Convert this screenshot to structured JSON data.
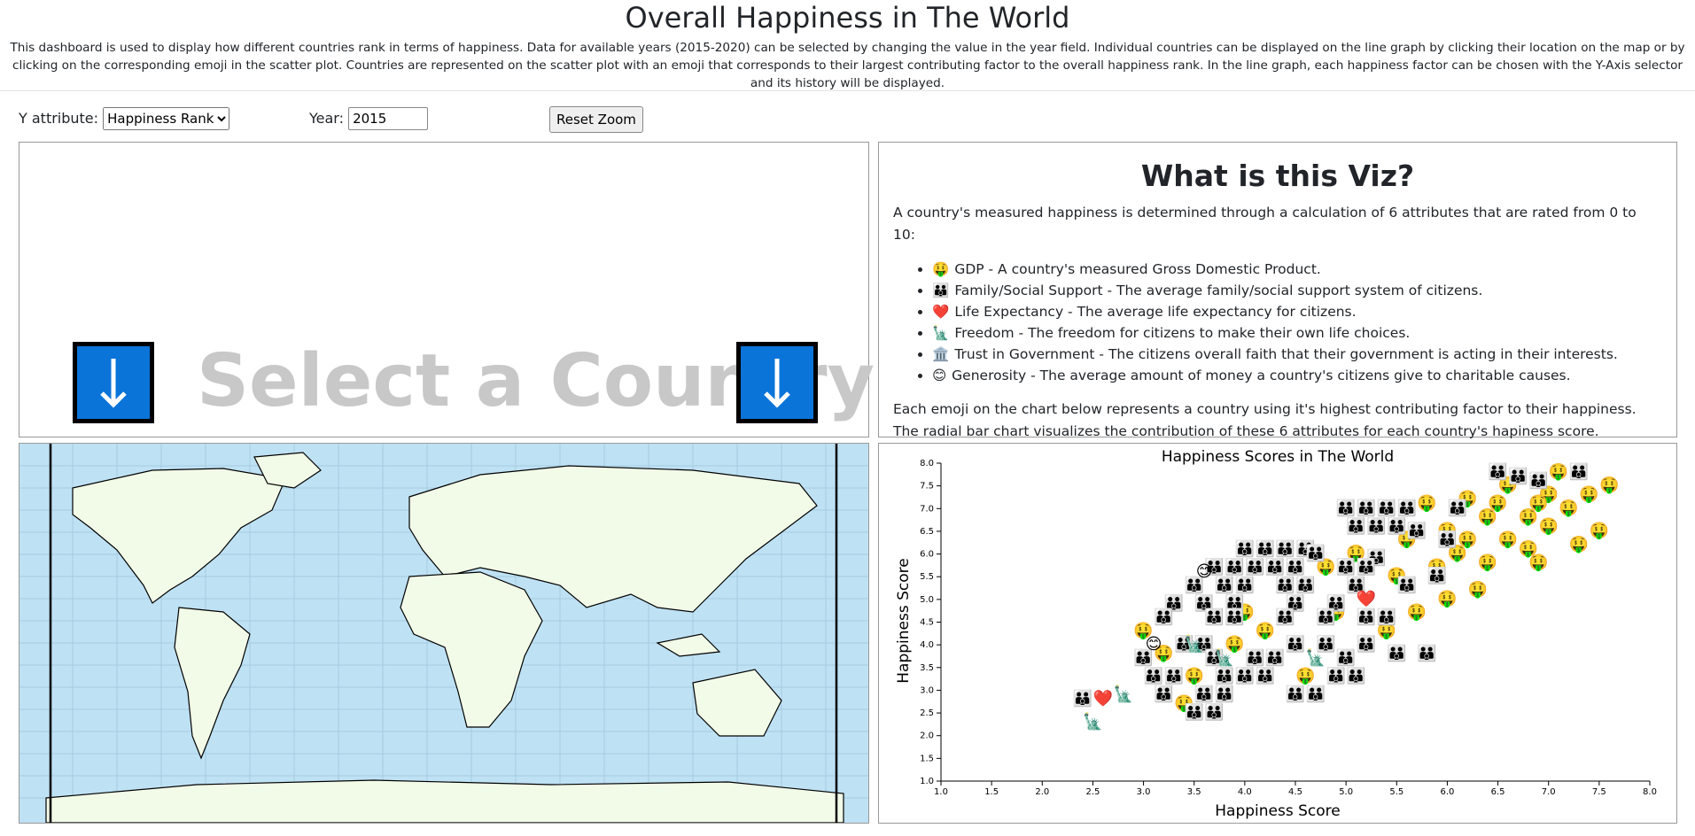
{
  "header": {
    "title": "Overall Happiness in The World",
    "description": "This dashboard is used to display how different countries rank in terms of happiness. Data for available years (2015-2020) can be selected by changing the value in the year field. Individual countries can be displayed on the line graph by clicking their location on the map or by clicking on the corresponding emoji in the scatter plot. Countries are represented on the scatter plot with an emoji that corresponds to their largest contributing factor to the overall happiness rank. In the line graph, each happiness factor can be chosen with the Y-Axis selector and its history will be displayed."
  },
  "controls": {
    "y_attribute_label": "Y attribute:",
    "y_attribute_value": "Happiness Rank",
    "year_label": "Year:",
    "year_value": "2015",
    "reset_button": "Reset Zoom"
  },
  "placeholder": {
    "text": "Select a Country",
    "arrow": "↓"
  },
  "info": {
    "title": "What is this Viz?",
    "intro": "A country's measured happiness is determined through a calculation of 6 attributes that are rated from 0 to 10:",
    "items": [
      {
        "emoji": "🤑",
        "text": "GDP - A country's measured Gross Domestic Product."
      },
      {
        "emoji": "👪",
        "text": "Family/Social Support - The average family/social support system of citizens."
      },
      {
        "emoji": "❤️",
        "text": "Life Expectancy - The average life expectancy for citizens."
      },
      {
        "emoji": "🗽",
        "text": "Freedom - The freedom for citizens to make their own life choices."
      },
      {
        "emoji": "🏛️",
        "text": "Trust in Government - The citizens overall faith that their government is acting in their interests."
      },
      {
        "emoji": "😊",
        "text": "Generosity - The average amount of money a country's citizens give to charitable causes."
      }
    ],
    "outro": [
      "Each emoji on the chart below represents a country using it's highest contributing factor to their happiness.",
      "The radial bar chart visualizes the contribution of these 6 attributes for each country's hapiness score."
    ]
  },
  "chart_data": {
    "type": "scatter",
    "title": "Happiness Scores in The World",
    "x_label": "Happiness Score",
    "y_label": "Happiness Score",
    "xlim": [
      1,
      8
    ],
    "ylim": [
      1,
      8
    ],
    "xticks": [
      {
        "value": 1,
        "label": "1.0"
      },
      {
        "value": 1.5,
        "label": "1.5"
      },
      {
        "value": 2,
        "label": "2.0"
      },
      {
        "value": 2.5,
        "label": "2.5"
      },
      {
        "value": 3,
        "label": "3.0"
      },
      {
        "value": 3.5,
        "label": "3.5"
      },
      {
        "value": 4,
        "label": "4.0"
      },
      {
        "value": 4.5,
        "label": "4.5"
      },
      {
        "value": 5,
        "label": "5.0"
      },
      {
        "value": 5.5,
        "label": "5.5"
      },
      {
        "value": 6,
        "label": "6.0"
      },
      {
        "value": 6.5,
        "label": "6.5"
      },
      {
        "value": 7,
        "label": "7.0"
      },
      {
        "value": 7.5,
        "label": "7.5"
      },
      {
        "value": 8,
        "label": "8.0"
      }
    ],
    "yticks": [
      {
        "value": 1,
        "label": "1.0"
      },
      {
        "value": 1.5,
        "label": "1.5"
      },
      {
        "value": 2,
        "label": "2.0"
      },
      {
        "value": 2.5,
        "label": "2.5"
      },
      {
        "value": 3,
        "label": "3.0"
      },
      {
        "value": 3.5,
        "label": "3.5"
      },
      {
        "value": 4,
        "label": "4.0"
      },
      {
        "value": 4.5,
        "label": "4.5"
      },
      {
        "value": 5,
        "label": "5.0"
      },
      {
        "value": 5.5,
        "label": "5.5"
      },
      {
        "value": 6,
        "label": "6.0"
      },
      {
        "value": 6.5,
        "label": "6.5"
      },
      {
        "value": 7,
        "label": "7.0"
      },
      {
        "value": 7.5,
        "label": "7.5"
      },
      {
        "value": 8,
        "label": "8.0"
      }
    ],
    "series": [
      {
        "marker": "🤑",
        "x": [
          7.1,
          7.6,
          7.4,
          7.0,
          6.6,
          6.9,
          6.5,
          6.2,
          7.2,
          6.8,
          6.4,
          7.0,
          7.5,
          6.6,
          6.2,
          7.3,
          6.8,
          5.8,
          6.0,
          6.1,
          6.4,
          6.9,
          5.9,
          6.3,
          6.0,
          5.7,
          5.4,
          4.9,
          4.2,
          3.5,
          4.6,
          3.9,
          3.2,
          3.0,
          4.8,
          5.5,
          5.1,
          3.4,
          4.0,
          5.6
        ],
        "y": [
          7.8,
          7.5,
          7.3,
          7.3,
          7.5,
          7.1,
          7.1,
          7.2,
          7.0,
          6.8,
          6.8,
          6.6,
          6.5,
          6.3,
          6.3,
          6.2,
          6.1,
          7.1,
          6.5,
          6.0,
          5.8,
          5.8,
          5.7,
          5.2,
          5.0,
          4.7,
          4.3,
          4.7,
          4.3,
          3.3,
          3.3,
          4.0,
          3.8,
          4.3,
          5.7,
          5.5,
          6.0,
          2.7,
          4.7,
          6.3
        ]
      },
      {
        "marker": "👪",
        "x": [
          7.3,
          6.9,
          6.7,
          6.5,
          6.1,
          5.0,
          5.2,
          5.4,
          5.6,
          5.1,
          5.3,
          5.5,
          5.7,
          6.0,
          4.0,
          4.2,
          4.4,
          4.6,
          4.7,
          5.3,
          3.7,
          3.9,
          4.1,
          4.3,
          4.5,
          5.0,
          5.2,
          3.5,
          3.8,
          4.0,
          4.4,
          4.6,
          5.1,
          5.6,
          5.9,
          3.3,
          3.6,
          3.9,
          4.5,
          4.9,
          3.2,
          3.7,
          3.9,
          4.4,
          4.8,
          5.2,
          5.4,
          3.4,
          3.6,
          4.5,
          4.8,
          5.2,
          3.0,
          3.7,
          4.1,
          4.3,
          5.0,
          5.5,
          5.8,
          3.1,
          3.3,
          3.8,
          4.0,
          4.2,
          4.9,
          5.1,
          3.2,
          3.6,
          3.8,
          4.5,
          4.7,
          3.5,
          3.7,
          2.4
        ],
        "y": [
          7.8,
          7.6,
          7.7,
          7.8,
          7.0,
          7.0,
          7.0,
          7.0,
          7.0,
          6.6,
          6.6,
          6.6,
          6.5,
          6.3,
          6.1,
          6.1,
          6.1,
          6.1,
          6.0,
          5.9,
          5.7,
          5.7,
          5.7,
          5.7,
          5.7,
          5.7,
          5.7,
          5.3,
          5.3,
          5.3,
          5.3,
          5.3,
          5.3,
          5.3,
          5.5,
          4.9,
          4.9,
          4.9,
          4.9,
          4.9,
          4.6,
          4.6,
          4.6,
          4.6,
          4.6,
          4.6,
          4.6,
          4.0,
          4.0,
          4.0,
          4.0,
          4.0,
          3.7,
          3.7,
          3.7,
          3.7,
          3.7,
          3.8,
          3.8,
          3.3,
          3.3,
          3.3,
          3.3,
          3.3,
          3.3,
          3.3,
          2.9,
          2.9,
          2.9,
          2.9,
          2.9,
          2.5,
          2.5,
          2.8
        ]
      },
      {
        "marker": "❤️",
        "x": [
          2.6,
          5.2
        ],
        "y": [
          2.8,
          5.0
        ]
      },
      {
        "marker": "🗽",
        "x": [
          2.5,
          2.8,
          3.8,
          4.7,
          3.5
        ],
        "y": [
          2.3,
          2.9,
          3.7,
          3.7,
          4.0
        ]
      },
      {
        "marker": "😊",
        "x": [
          3.6,
          3.1
        ],
        "y": [
          5.6,
          4.0
        ]
      }
    ]
  }
}
